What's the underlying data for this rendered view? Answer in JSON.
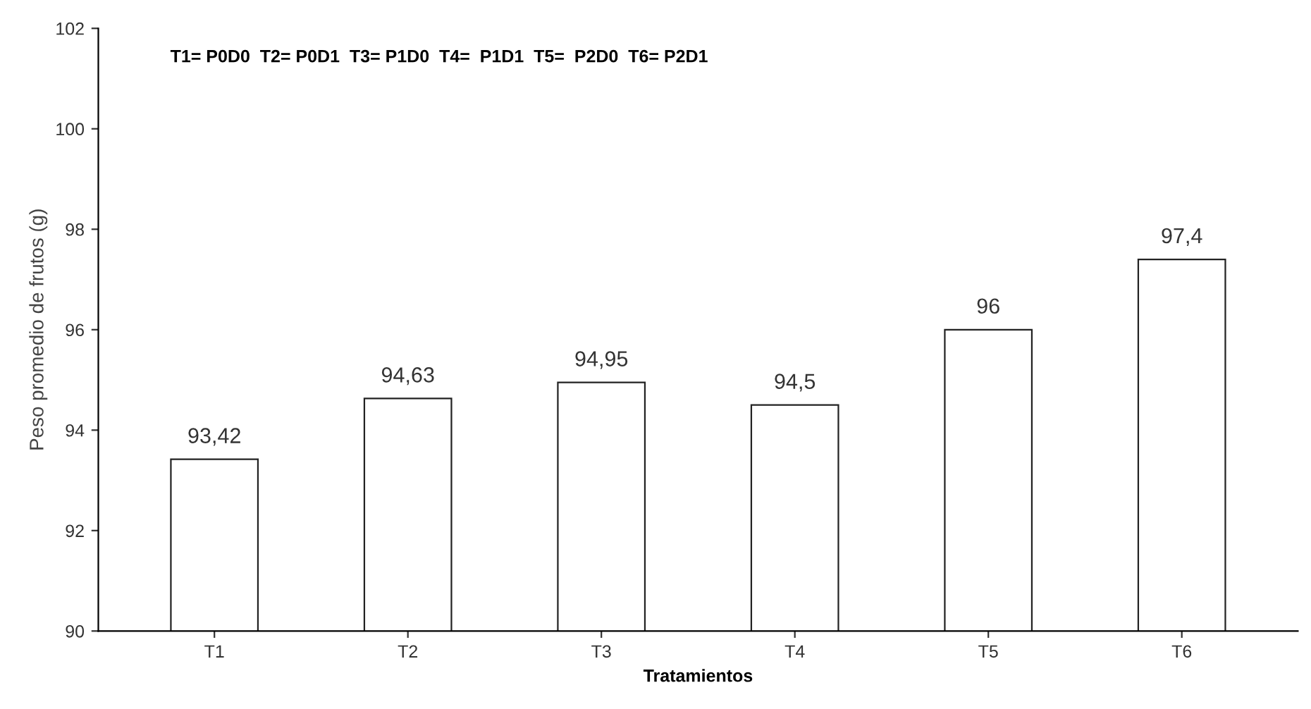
{
  "chart_data": {
    "type": "bar",
    "subtitle": "T1= P0D0  T2= P0D1  T3= P1D0  T4=  P1D1  T5=  P2D0  T6= P2D1",
    "xlabel": "Tratamientos",
    "ylabel": "Peso promedio de frutos (g)",
    "categories": [
      "T1",
      "T2",
      "T3",
      "T4",
      "T5",
      "T6"
    ],
    "values": [
      93.42,
      94.63,
      94.95,
      94.5,
      96,
      97.4
    ],
    "value_labels": [
      "93,42",
      "94,63",
      "94,95",
      "94,5",
      "96",
      "97,4"
    ],
    "color": "#ffffff",
    "ylim": [
      90,
      102
    ],
    "yticks": [
      90,
      92,
      94,
      96,
      98,
      100,
      102
    ],
    "grid": false,
    "legend": false
  }
}
